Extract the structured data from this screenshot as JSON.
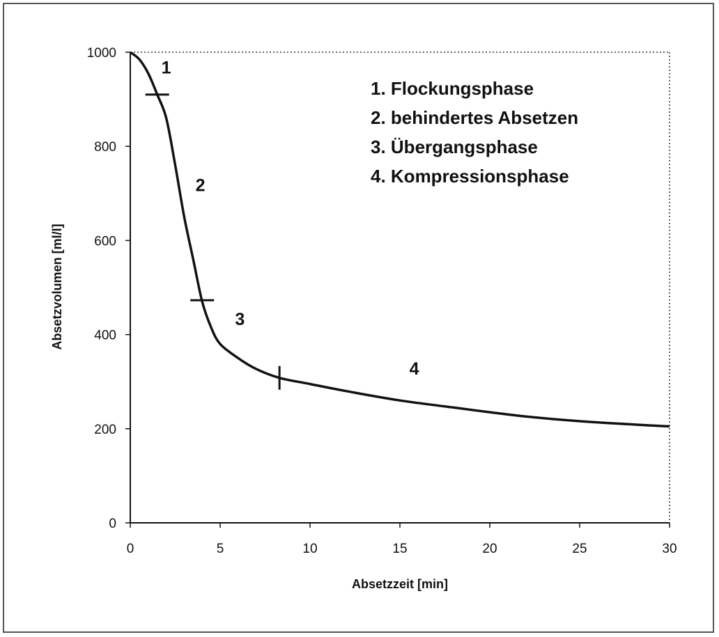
{
  "chart_data": {
    "type": "line",
    "xlabel": "Absetzzeit [min]",
    "ylabel": "Absetzvolumen [ml/l]",
    "xlim": [
      0,
      30
    ],
    "ylim": [
      0,
      1000
    ],
    "x_ticks": [
      0,
      5,
      10,
      15,
      20,
      25,
      30
    ],
    "y_ticks": [
      0,
      200,
      400,
      600,
      800,
      1000
    ],
    "grid": false,
    "legend_position": "top-right",
    "legend": [
      "1. Flockungsphase",
      "2. behindertes Absetzen",
      "3. Übergangsphase",
      "4. Kompressionsphase"
    ],
    "series": [
      {
        "x": [
          0,
          0.5,
          1,
          1.5,
          2,
          2.5,
          3,
          3.5,
          4,
          4.5,
          5,
          6,
          7,
          8.3,
          10,
          12,
          15,
          18,
          20,
          22,
          25,
          28,
          30
        ],
        "values": [
          1000,
          985,
          955,
          910,
          860,
          760,
          650,
          560,
          470,
          415,
          380,
          350,
          327,
          308,
          295,
          280,
          260,
          245,
          235,
          226,
          216,
          209,
          205
        ]
      }
    ],
    "phase_markers": [
      {
        "label": "1",
        "x": 1.5,
        "y": 910,
        "orientation": "horizontal"
      },
      {
        "label": "2",
        "x": 4.0,
        "y": 473,
        "orientation": "horizontal"
      },
      {
        "label": "3",
        "x": 8.3,
        "y": 308,
        "orientation": "vertical"
      }
    ],
    "phase_labels": [
      {
        "label": "1",
        "x": 2.0,
        "y": 955
      },
      {
        "label": "2",
        "x": 3.9,
        "y": 705
      },
      {
        "label": "3",
        "x": 6.1,
        "y": 420
      },
      {
        "label": "4",
        "x": 15.8,
        "y": 315
      }
    ]
  }
}
